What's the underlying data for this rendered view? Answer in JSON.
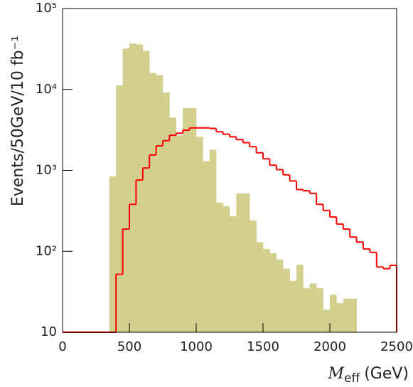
{
  "chart_data": {
    "type": "histogram",
    "xlabel": {
      "symbol": "M",
      "subscript": "eff",
      "unit": "(GeV)"
    },
    "ylabel": "Events/50GeV/10 fb⁻¹",
    "bins": [
      0,
      50,
      100,
      150,
      200,
      250,
      300,
      350,
      400,
      450,
      500,
      550,
      600,
      650,
      700,
      750,
      800,
      850,
      900,
      950,
      1000,
      1050,
      1100,
      1150,
      1200,
      1250,
      1300,
      1350,
      1400,
      1450,
      1500,
      1550,
      1600,
      1650,
      1700,
      1750,
      1800,
      1850,
      1900,
      1950,
      2000,
      2050,
      2100,
      2150,
      2200,
      2250,
      2300,
      2350,
      2400,
      2450,
      2500
    ],
    "series": [
      {
        "style": "filled",
        "color": "#d3cf8e",
        "values": [
          null,
          null,
          null,
          null,
          null,
          null,
          null,
          840,
          11200,
          32000,
          37000,
          36000,
          30000,
          16000,
          15000,
          9200,
          4500,
          2700,
          5900,
          5900,
          2600,
          1300,
          1800,
          400,
          360,
          270,
          520,
          520,
          240,
          130,
          107,
          95,
          79,
          61,
          43,
          68,
          35,
          40,
          35,
          19,
          29,
          23,
          26,
          26,
          null,
          null,
          null,
          null,
          null,
          null
        ]
      },
      {
        "style": "step",
        "color": "#ff0000",
        "values": [
          10,
          10,
          10,
          10,
          10,
          10,
          10,
          10,
          52,
          188,
          380,
          760,
          1070,
          1550,
          2010,
          2330,
          2720,
          2880,
          3140,
          3350,
          3350,
          3350,
          3300,
          3000,
          2800,
          2600,
          2400,
          2200,
          1960,
          1650,
          1390,
          1160,
          1020,
          880,
          740,
          580,
          560,
          520,
          380,
          320,
          265,
          217,
          188,
          150,
          130,
          107,
          97,
          64,
          61,
          67
        ]
      }
    ],
    "xlim": [
      0,
      2500
    ],
    "xticks": [
      0,
      500,
      1000,
      1500,
      2000,
      2500
    ],
    "ylim": [
      10,
      100000
    ],
    "yticks": [
      10,
      {
        "value": 100,
        "label": "10²"
      },
      {
        "value": 1000,
        "label": "10³"
      },
      {
        "value": 10000,
        "label": "10⁴"
      },
      {
        "value": 100000,
        "label": "10⁵"
      }
    ],
    "log_y": true
  }
}
